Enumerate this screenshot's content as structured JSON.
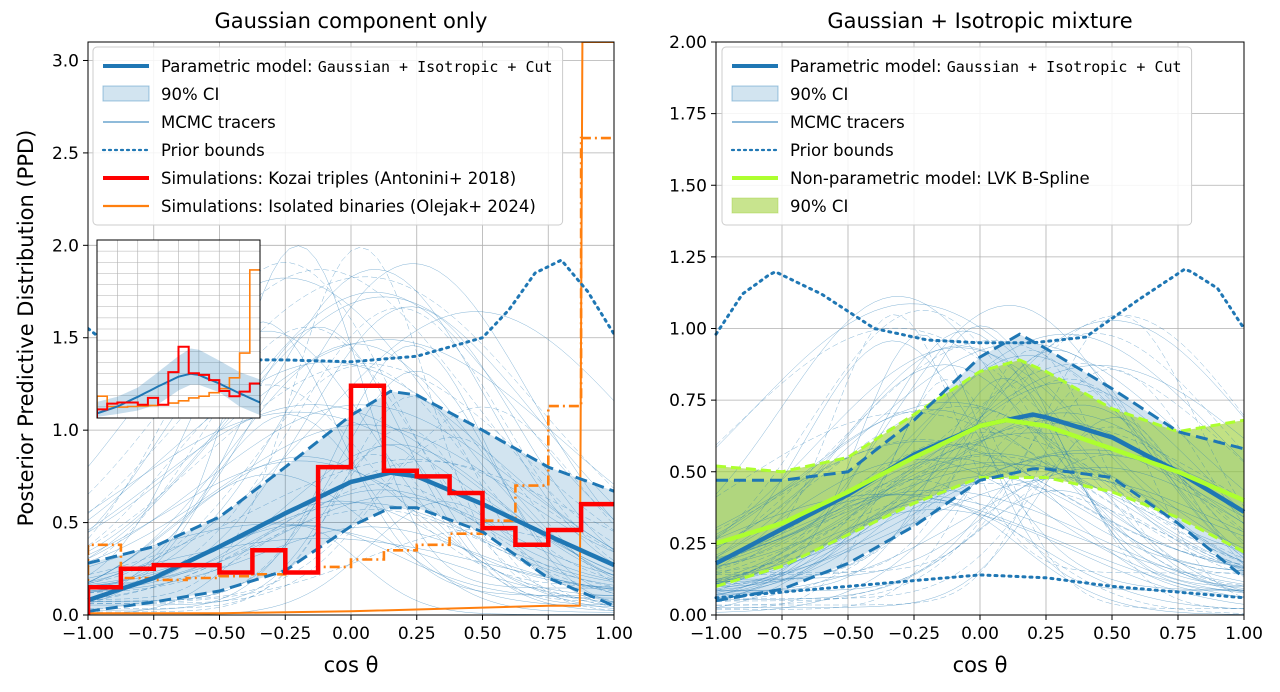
{
  "chart_data": [
    {
      "type": "line",
      "title": "Gaussian component only",
      "xlabel": "cos θ",
      "ylabel": "Posterior Predictive Distribution (PPD)",
      "xlim": [
        -1.0,
        1.0
      ],
      "ylim": [
        0.0,
        3.1
      ],
      "xticks": [
        "−1.00",
        "−0.75",
        "−0.50",
        "−0.25",
        "0.00",
        "0.25",
        "0.50",
        "0.75",
        "1.00"
      ],
      "yticks": [
        "0.0",
        "0.5",
        "1.0",
        "1.5",
        "2.0",
        "2.5",
        "3.0"
      ],
      "grid": true,
      "legend_position": "top",
      "legend": [
        {
          "key": "param",
          "label_prefix": "Parametric model: ",
          "label_mono": "Gaussian + Isotropic + Cut",
          "style": "thick-line",
          "color": "#1f77b4"
        },
        {
          "key": "ci",
          "label": "90% CI",
          "style": "band",
          "color": "#1f77b4"
        },
        {
          "key": "mcmc",
          "label": "MCMC tracers",
          "style": "thin-line",
          "color": "#1f77b4"
        },
        {
          "key": "prior",
          "label": "Prior bounds",
          "style": "dotted",
          "color": "#1f77b4"
        },
        {
          "key": "kozai",
          "label": "Simulations: Kozai triples (Antonini+ 2018)",
          "style": "thick-line",
          "color": "#ff0000"
        },
        {
          "key": "isolated",
          "label": "Simulations: Isolated binaries (Olejak+ 2024)",
          "style": "line",
          "color": "#ff7f0e"
        }
      ],
      "series": [
        {
          "name": "Parametric model median",
          "x": [
            -1.0,
            -0.75,
            -0.5,
            -0.25,
            0.0,
            0.15,
            0.25,
            0.5,
            0.75,
            1.0
          ],
          "values": [
            0.08,
            0.2,
            0.37,
            0.55,
            0.72,
            0.77,
            0.75,
            0.6,
            0.43,
            0.27
          ]
        },
        {
          "name": "90% CI lower",
          "x": [
            -1.0,
            -0.75,
            -0.5,
            -0.25,
            0.0,
            0.15,
            0.25,
            0.5,
            0.75,
            1.0
          ],
          "values": [
            0.02,
            0.07,
            0.13,
            0.24,
            0.48,
            0.58,
            0.58,
            0.45,
            0.2,
            0.05
          ]
        },
        {
          "name": "90% CI upper",
          "x": [
            -1.0,
            -0.75,
            -0.5,
            -0.25,
            0.0,
            0.15,
            0.25,
            0.5,
            0.75,
            1.0
          ],
          "values": [
            0.28,
            0.37,
            0.53,
            0.8,
            1.08,
            1.21,
            1.19,
            1.0,
            0.8,
            0.67
          ]
        },
        {
          "name": "Prior bounds",
          "x": [
            -1.0,
            -0.85,
            -0.75,
            -0.5,
            -0.25,
            0.0,
            0.25,
            0.5,
            0.6,
            0.7,
            0.8,
            0.9,
            1.0
          ],
          "values": [
            1.55,
            1.38,
            1.38,
            1.38,
            1.38,
            1.37,
            1.4,
            1.5,
            1.65,
            1.85,
            1.92,
            1.75,
            1.52
          ]
        },
        {
          "name": "Kozai triples",
          "step_edges": [
            -1.0,
            -0.875,
            -0.75,
            -0.625,
            -0.5,
            -0.375,
            -0.25,
            -0.125,
            0.0,
            0.125,
            0.25,
            0.375,
            0.5,
            0.625,
            0.75,
            0.875,
            1.0
          ],
          "values": [
            0.15,
            0.25,
            0.27,
            0.27,
            0.23,
            0.35,
            0.23,
            0.8,
            1.24,
            0.78,
            0.75,
            0.66,
            0.47,
            0.38,
            0.46,
            0.6
          ]
        },
        {
          "name": "Isolated binaries (dash-dot)",
          "step_edges": [
            -1.0,
            -0.875,
            -0.75,
            -0.625,
            -0.5,
            -0.375,
            -0.25,
            -0.125,
            0.0,
            0.125,
            0.25,
            0.375,
            0.5,
            0.625,
            0.75,
            0.875,
            1.0
          ],
          "values": [
            0.38,
            0.2,
            0.19,
            0.2,
            0.21,
            0.22,
            0.23,
            0.26,
            0.3,
            0.35,
            0.38,
            0.44,
            0.51,
            0.7,
            1.13,
            2.58
          ]
        },
        {
          "name": "Isolated binaries (solid)",
          "x": [
            -1.0,
            -0.5,
            0.0,
            0.5,
            0.75,
            0.85,
            0.87,
            0.88,
            1.0
          ],
          "values": [
            0.01,
            0.01,
            0.02,
            0.04,
            0.05,
            0.05,
            0.05,
            3.1,
            3.1
          ]
        }
      ],
      "inset": {
        "xlim": [
          -1.0,
          1.0
        ],
        "ylim": [
          0.0,
          3.1
        ],
        "grid": true,
        "content": "zoomed-out view of the same curves; isolated binaries histogram reaches ~2.6"
      }
    },
    {
      "type": "line",
      "title": "Gaussian + Isotropic mixture",
      "xlabel": "cos θ",
      "ylabel": "",
      "xlim": [
        -1.0,
        1.0
      ],
      "ylim": [
        0.0,
        2.0
      ],
      "xticks": [
        "−1.00",
        "−0.75",
        "−0.50",
        "−0.25",
        "0.00",
        "0.25",
        "0.50",
        "0.75",
        "1.00"
      ],
      "yticks": [
        "0.00",
        "0.25",
        "0.50",
        "0.75",
        "1.00",
        "1.25",
        "1.50",
        "1.75",
        "2.00"
      ],
      "grid": true,
      "legend_position": "top",
      "legend": [
        {
          "key": "param",
          "label_prefix": "Parametric model: ",
          "label_mono": "Gaussian + Isotropic + Cut",
          "style": "thick-line",
          "color": "#1f77b4"
        },
        {
          "key": "ci",
          "label": "90% CI",
          "style": "band",
          "color": "#1f77b4"
        },
        {
          "key": "mcmc",
          "label": "MCMC tracers",
          "style": "thin-line",
          "color": "#1f77b4"
        },
        {
          "key": "prior",
          "label": "Prior bounds",
          "style": "dotted",
          "color": "#1f77b4"
        },
        {
          "key": "nonparam",
          "label": "Non-parametric model: LVK B-Spline",
          "style": "thick-line",
          "color": "#adff2f"
        },
        {
          "key": "ci2",
          "label": "90% CI",
          "style": "band",
          "color": "#9acd32"
        }
      ],
      "series": [
        {
          "name": "Parametric model median",
          "x": [
            -1.0,
            -0.75,
            -0.5,
            -0.25,
            0.0,
            0.2,
            0.25,
            0.5,
            0.75,
            1.0
          ],
          "values": [
            0.18,
            0.3,
            0.42,
            0.56,
            0.66,
            0.7,
            0.69,
            0.62,
            0.5,
            0.36
          ]
        },
        {
          "name": "90% CI lower",
          "x": [
            -1.0,
            -0.75,
            -0.5,
            -0.25,
            0.0,
            0.2,
            0.25,
            0.5,
            0.75,
            1.0
          ],
          "values": [
            0.05,
            0.09,
            0.18,
            0.31,
            0.47,
            0.51,
            0.51,
            0.48,
            0.32,
            0.13
          ]
        },
        {
          "name": "90% CI upper",
          "x": [
            -1.0,
            -0.75,
            -0.5,
            -0.25,
            0.0,
            0.15,
            0.25,
            0.5,
            0.75,
            1.0
          ],
          "values": [
            0.47,
            0.47,
            0.5,
            0.68,
            0.9,
            0.98,
            0.93,
            0.79,
            0.64,
            0.58
          ]
        },
        {
          "name": "Prior bounds upper",
          "x": [
            -1.0,
            -0.9,
            -0.78,
            -0.6,
            -0.4,
            -0.2,
            0.0,
            0.2,
            0.4,
            0.6,
            0.78,
            0.9,
            1.0
          ],
          "values": [
            0.98,
            1.12,
            1.2,
            1.12,
            1.0,
            0.96,
            0.95,
            0.95,
            0.97,
            1.1,
            1.21,
            1.14,
            1.0
          ]
        },
        {
          "name": "Prior bounds lower",
          "x": [
            -1.0,
            -0.75,
            -0.5,
            -0.25,
            0.0,
            0.25,
            0.5,
            0.75,
            1.0
          ],
          "values": [
            0.06,
            0.08,
            0.1,
            0.12,
            0.14,
            0.13,
            0.1,
            0.08,
            0.06
          ]
        },
        {
          "name": "LVK B-Spline median",
          "x": [
            -1.0,
            -0.75,
            -0.5,
            -0.25,
            0.0,
            0.1,
            0.25,
            0.5,
            0.75,
            1.0
          ],
          "values": [
            0.25,
            0.32,
            0.43,
            0.55,
            0.66,
            0.68,
            0.66,
            0.58,
            0.5,
            0.4
          ]
        },
        {
          "name": "LVK B-Spline 90% CI lower",
          "x": [
            -1.0,
            -0.75,
            -0.5,
            -0.25,
            0.0,
            0.25,
            0.5,
            0.75,
            1.0
          ],
          "values": [
            0.1,
            0.17,
            0.28,
            0.39,
            0.48,
            0.48,
            0.43,
            0.34,
            0.22
          ]
        },
        {
          "name": "LVK B-Spline 90% CI upper",
          "x": [
            -1.0,
            -0.75,
            -0.5,
            -0.25,
            0.0,
            0.15,
            0.25,
            0.5,
            0.75,
            1.0
          ],
          "values": [
            0.52,
            0.5,
            0.55,
            0.7,
            0.85,
            0.89,
            0.85,
            0.72,
            0.64,
            0.68
          ]
        }
      ]
    }
  ]
}
